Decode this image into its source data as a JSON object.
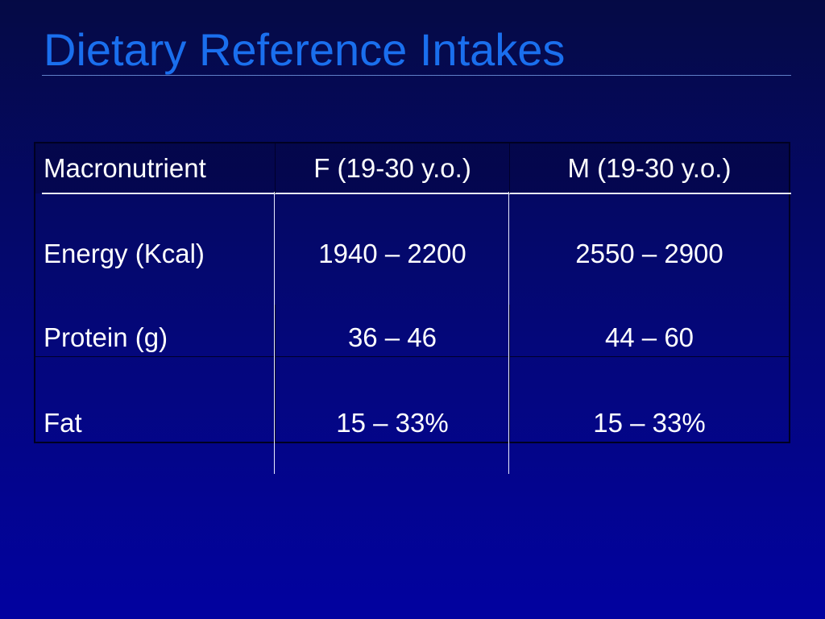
{
  "slide": {
    "title": "Dietary Reference Intakes"
  },
  "table": {
    "headers": [
      "Macronutrient",
      "F (19-30 y.o.)",
      "M (19-30 y.o.)"
    ],
    "rows": [
      [
        "Energy (Kcal)",
        "1940 – 2200",
        "2550 – 2900"
      ],
      [
        "Protein (g)",
        "36 – 46",
        "44 – 60"
      ],
      [
        "Fat",
        "15 – 33%",
        "15 – 33%"
      ]
    ]
  },
  "colors": {
    "title": "#1a6fee",
    "text": "#ffffff",
    "background_top": "#050a45",
    "background_bottom": "#0202a0"
  }
}
